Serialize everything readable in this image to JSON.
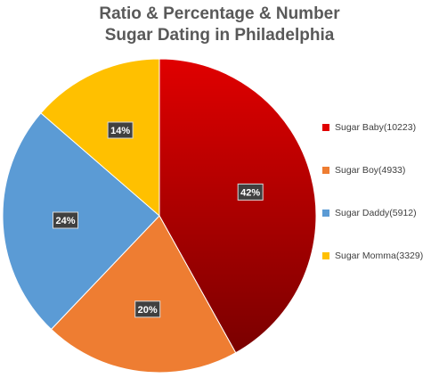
{
  "chart_data": {
    "type": "pie",
    "title_lines": [
      "Ratio & Percentage & Number",
      "Sugar Dating in Philadelphia"
    ],
    "slices": [
      {
        "label": "Sugar Baby(10223)",
        "value": 10223,
        "pct_label": "42%",
        "color": "#e00000",
        "color_dark": "#7a0000"
      },
      {
        "label": "Sugar Boy(4933)",
        "value": 4933,
        "pct_label": "20%",
        "color": "#ee7d32"
      },
      {
        "label": "Sugar Daddy(5912)",
        "value": 5912,
        "pct_label": "24%",
        "color": "#5b9bd5"
      },
      {
        "label": "Sugar Momma(3329)",
        "value": 3329,
        "pct_label": "14%",
        "color": "#ffc000"
      }
    ],
    "start": "12 o'clock",
    "direction": "clockwise",
    "legend_position": "right"
  }
}
